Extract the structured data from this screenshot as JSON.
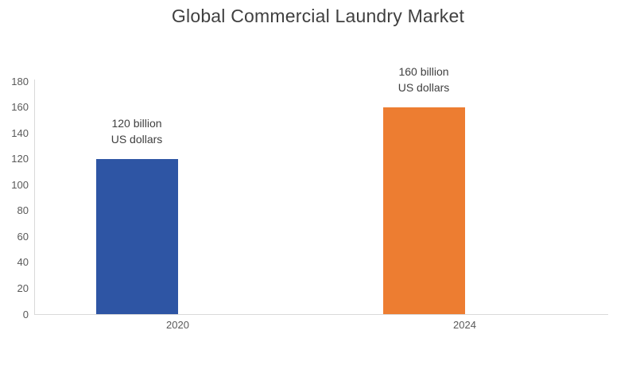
{
  "title": "Global Commercial Laundry Market",
  "colors": {
    "background": "#ffffff",
    "title_text": "#404040",
    "tick_text": "#595959",
    "data_label_text": "#404040",
    "axis_line": "#d9d9d9",
    "bar_2020": "#2e55a4",
    "bar_2024": "#ed7d31"
  },
  "chart_data": {
    "type": "bar",
    "title": "Global Commercial Laundry Market",
    "categories": [
      "2020",
      "2024"
    ],
    "values": [
      120,
      160
    ],
    "unit": "billion US dollars",
    "data_labels": [
      "120 billion\nUS dollars",
      "160 billion\nUS dollars"
    ],
    "bar_colors": [
      "#2e55a4",
      "#ed7d31"
    ],
    "xlabel": "",
    "ylabel": "",
    "ylim": [
      0,
      180
    ],
    "ytick_step": 20,
    "ytick_labels": [
      "0",
      "20",
      "40",
      "60",
      "80",
      "100",
      "120",
      "140",
      "160",
      "180"
    ],
    "grid": false,
    "legend": false
  }
}
